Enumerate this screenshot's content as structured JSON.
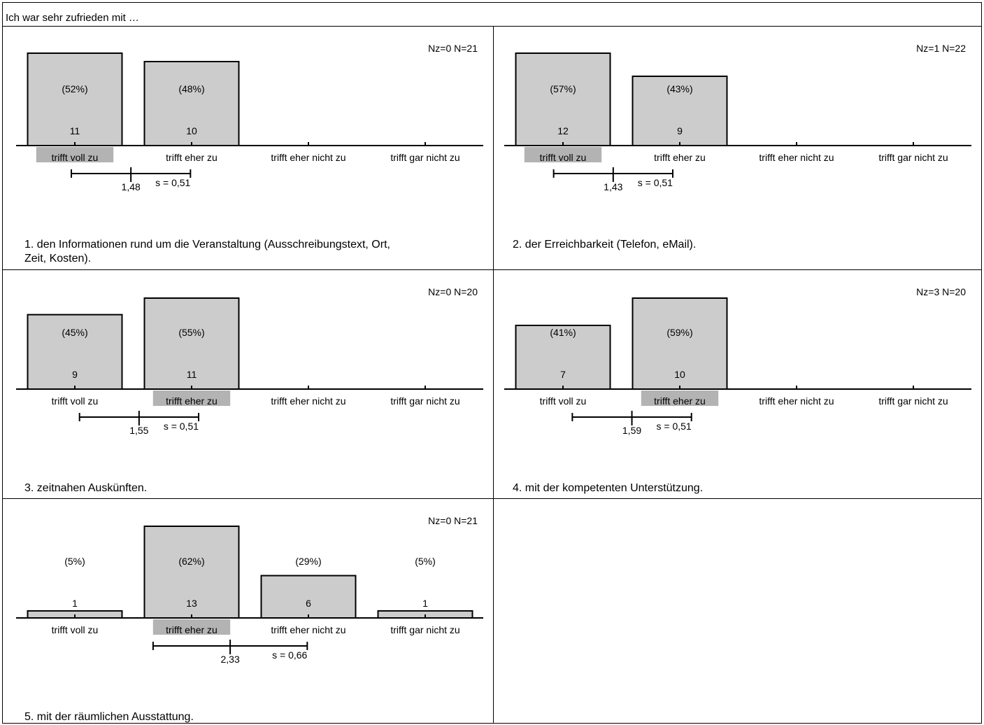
{
  "header": {
    "title": "Ich war sehr zufrieden mit …"
  },
  "colors": {
    "bar_fill": "#cccccc",
    "median_highlight": "#b3b3b3",
    "line": "#000000"
  },
  "chart_data": [
    {
      "type": "bar",
      "title": "1. den Informationen rund um die Veranstaltung (Ausschreibungstext, Ort, Zeit, Kosten).",
      "stats_label": "Nz=0  N=21",
      "categories": [
        "trifft voll zu",
        "trifft eher zu",
        "trifft eher nicht zu",
        "trifft gar nicht zu"
      ],
      "values": [
        11,
        10,
        0,
        0
      ],
      "percent_labels": [
        "(52%)",
        "(48%)",
        "",
        ""
      ],
      "value_labels": [
        "11",
        "10",
        "",
        ""
      ],
      "median_category_index": 0,
      "mean": 1.48,
      "mean_label": "1,48",
      "sd": 0.51,
      "sd_label": "s = 0,51",
      "ylim": [
        0,
        11
      ]
    },
    {
      "type": "bar",
      "title": "2. der Erreichbarkeit (Telefon, eMail).",
      "stats_label": "Nz=1  N=22",
      "categories": [
        "trifft voll zu",
        "trifft eher zu",
        "trifft eher nicht zu",
        "trifft gar nicht zu"
      ],
      "values": [
        12,
        9,
        0,
        0
      ],
      "percent_labels": [
        "(57%)",
        "(43%)",
        "",
        ""
      ],
      "value_labels": [
        "12",
        "9",
        "",
        ""
      ],
      "median_category_index": 0,
      "mean": 1.43,
      "mean_label": "1,43",
      "sd": 0.51,
      "sd_label": "s = 0,51",
      "ylim": [
        0,
        12
      ]
    },
    {
      "type": "bar",
      "title": "3. zeitnahen Auskünften.",
      "stats_label": "Nz=0  N=20",
      "categories": [
        "trifft voll zu",
        "trifft eher zu",
        "trifft eher nicht zu",
        "trifft gar nicht zu"
      ],
      "values": [
        9,
        11,
        0,
        0
      ],
      "percent_labels": [
        "(45%)",
        "(55%)",
        "",
        ""
      ],
      "value_labels": [
        "9",
        "11",
        "",
        ""
      ],
      "median_category_index": 1,
      "mean": 1.55,
      "mean_label": "1,55",
      "sd": 0.51,
      "sd_label": "s = 0,51",
      "ylim": [
        0,
        11
      ]
    },
    {
      "type": "bar",
      "title": "4. mit der kompetenten Unterstützung.",
      "stats_label": "Nz=3  N=20",
      "categories": [
        "trifft voll zu",
        "trifft eher zu",
        "trifft eher nicht zu",
        "trifft gar nicht zu"
      ],
      "values": [
        7,
        10,
        0,
        0
      ],
      "percent_labels": [
        "(41%)",
        "(59%)",
        "",
        ""
      ],
      "value_labels": [
        "7",
        "10",
        "",
        ""
      ],
      "median_category_index": 1,
      "mean": 1.59,
      "mean_label": "1,59",
      "sd": 0.51,
      "sd_label": "s = 0,51",
      "ylim": [
        0,
        10
      ]
    },
    {
      "type": "bar",
      "title": "5. mit der räumlichen Ausstattung.",
      "stats_label": "Nz=0  N=21",
      "categories": [
        "trifft voll zu",
        "trifft eher zu",
        "trifft eher nicht zu",
        "trifft gar nicht zu"
      ],
      "values": [
        1,
        13,
        6,
        1
      ],
      "percent_labels": [
        "(5%)",
        "(62%)",
        "(29%)",
        "(5%)"
      ],
      "value_labels": [
        "1",
        "13",
        "6",
        "1"
      ],
      "median_category_index": 1,
      "mean": 2.33,
      "mean_label": "2,33",
      "sd": 0.66,
      "sd_label": "s = 0,66",
      "ylim": [
        0,
        13
      ]
    }
  ]
}
